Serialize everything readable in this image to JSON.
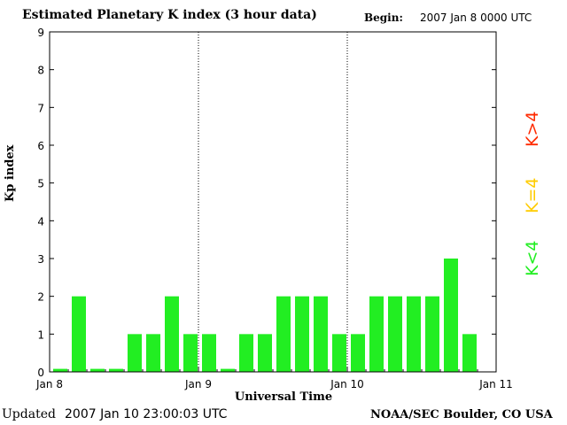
{
  "header": {
    "title": "Estimated Planetary K index (3 hour data)",
    "begin_label": "Begin:",
    "begin_value": "2007 Jan 8 0000 UTC"
  },
  "footer": {
    "updated_label": "Updated",
    "updated_value": "2007 Jan 10 23:00:03 UTC",
    "source": "NOAA/SEC Boulder, CO USA"
  },
  "legend": {
    "high": "K>4",
    "equal": "K=4",
    "low": "K<4"
  },
  "colors": {
    "low": "#22ee22",
    "equal": "#ffcc00",
    "high": "#ff2a00"
  },
  "chart_data": {
    "type": "bar",
    "title": "Estimated Planetary K index (3 hour data)",
    "xlabel": "Universal Time",
    "ylabel": "Kp index",
    "ylim": [
      0,
      9
    ],
    "yticks": [
      "0",
      "1",
      "2",
      "3",
      "4",
      "5",
      "6",
      "7",
      "8",
      "9"
    ],
    "xticks": [
      "Jan 8",
      "Jan 9",
      "Jan 10",
      "Jan 11"
    ],
    "interval_hours": 3,
    "grid": "dotted vertical lines at day boundaries",
    "categories": [
      "Jan 8 00",
      "Jan 8 03",
      "Jan 8 06",
      "Jan 8 09",
      "Jan 8 12",
      "Jan 8 15",
      "Jan 8 18",
      "Jan 8 21",
      "Jan 9 00",
      "Jan 9 03",
      "Jan 9 06",
      "Jan 9 09",
      "Jan 9 12",
      "Jan 9 15",
      "Jan 9 18",
      "Jan 9 21",
      "Jan 10 00",
      "Jan 10 03",
      "Jan 10 06",
      "Jan 10 09",
      "Jan 10 12",
      "Jan 10 15",
      "Jan 10 18"
    ],
    "values": [
      0,
      2,
      0,
      0,
      1,
      1,
      2,
      1,
      1,
      0,
      1,
      1,
      2,
      2,
      2,
      1,
      1,
      2,
      2,
      2,
      2,
      3,
      1
    ]
  }
}
